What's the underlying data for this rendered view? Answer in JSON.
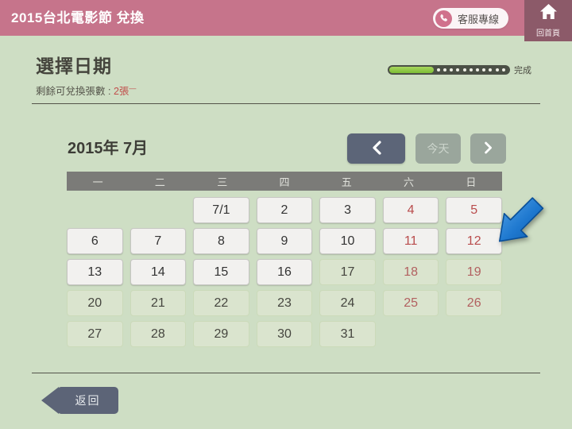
{
  "header": {
    "title": "2015台北電影節 兌換",
    "support_label": "客服專線",
    "home_label": "回首頁"
  },
  "progress": {
    "percent": 37,
    "dots": 11,
    "done_label": "完成"
  },
  "page": {
    "heading": "選擇日期",
    "remaining_label": "剩餘可兌換張數 :",
    "remaining_value": "2張",
    "remaining_mark": "—"
  },
  "calendar": {
    "title": "2015年 7月",
    "nav": {
      "prev_icon": "chevron-left",
      "today_label": "今天",
      "next_icon": "chevron-right"
    },
    "weekdays": [
      "一",
      "二",
      "三",
      "四",
      "五",
      "六",
      "日"
    ],
    "rows": [
      [
        null,
        null,
        {
          "d": "7/1",
          "weekend": false,
          "enabled": true
        },
        {
          "d": "2",
          "weekend": false,
          "enabled": true
        },
        {
          "d": "3",
          "weekend": false,
          "enabled": true
        },
        {
          "d": "4",
          "weekend": true,
          "enabled": true
        },
        {
          "d": "5",
          "weekend": true,
          "enabled": true
        }
      ],
      [
        {
          "d": "6",
          "weekend": false,
          "enabled": true
        },
        {
          "d": "7",
          "weekend": false,
          "enabled": true
        },
        {
          "d": "8",
          "weekend": false,
          "enabled": true
        },
        {
          "d": "9",
          "weekend": false,
          "enabled": true
        },
        {
          "d": "10",
          "weekend": false,
          "enabled": true
        },
        {
          "d": "11",
          "weekend": true,
          "enabled": true
        },
        {
          "d": "12",
          "weekend": true,
          "enabled": true
        }
      ],
      [
        {
          "d": "13",
          "weekend": false,
          "enabled": true
        },
        {
          "d": "14",
          "weekend": false,
          "enabled": true
        },
        {
          "d": "15",
          "weekend": false,
          "enabled": true
        },
        {
          "d": "16",
          "weekend": false,
          "enabled": true
        },
        {
          "d": "17",
          "weekend": false,
          "enabled": false
        },
        {
          "d": "18",
          "weekend": true,
          "enabled": false
        },
        {
          "d": "19",
          "weekend": true,
          "enabled": false
        }
      ],
      [
        {
          "d": "20",
          "weekend": false,
          "enabled": false
        },
        {
          "d": "21",
          "weekend": false,
          "enabled": false
        },
        {
          "d": "22",
          "weekend": false,
          "enabled": false
        },
        {
          "d": "23",
          "weekend": false,
          "enabled": false
        },
        {
          "d": "24",
          "weekend": false,
          "enabled": false
        },
        {
          "d": "25",
          "weekend": true,
          "enabled": false
        },
        {
          "d": "26",
          "weekend": true,
          "enabled": false
        }
      ],
      [
        {
          "d": "27",
          "weekend": false,
          "enabled": false
        },
        {
          "d": "28",
          "weekend": false,
          "enabled": false
        },
        {
          "d": "29",
          "weekend": false,
          "enabled": false
        },
        {
          "d": "30",
          "weekend": false,
          "enabled": false
        },
        {
          "d": "31",
          "weekend": false,
          "enabled": false
        },
        null,
        null
      ]
    ]
  },
  "pointer": {
    "icon": "blue-arrow",
    "points_at": "12"
  },
  "back": {
    "label": "返回"
  },
  "colors": {
    "header_pink": "#c6748b",
    "home_mauve": "#8c5a69",
    "background_green": "#cedec4",
    "progress_green": "#7cbd35",
    "weekend_red": "#b94c4c",
    "nav_dark": "#5c6578",
    "nav_muted": "#9aa69c",
    "back_slate": "#5c6477"
  }
}
